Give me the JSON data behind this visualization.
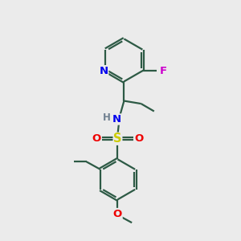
{
  "background_color": "#ebebeb",
  "bond_color": "#2d5a45",
  "N_color": "#0000ee",
  "F_color": "#cc00cc",
  "S_color": "#cccc00",
  "O_color": "#ee0000",
  "linewidth": 1.6,
  "figsize": [
    3.0,
    3.0
  ],
  "dpi": 100,
  "xlim": [
    0,
    10
  ],
  "ylim": [
    0,
    10
  ]
}
